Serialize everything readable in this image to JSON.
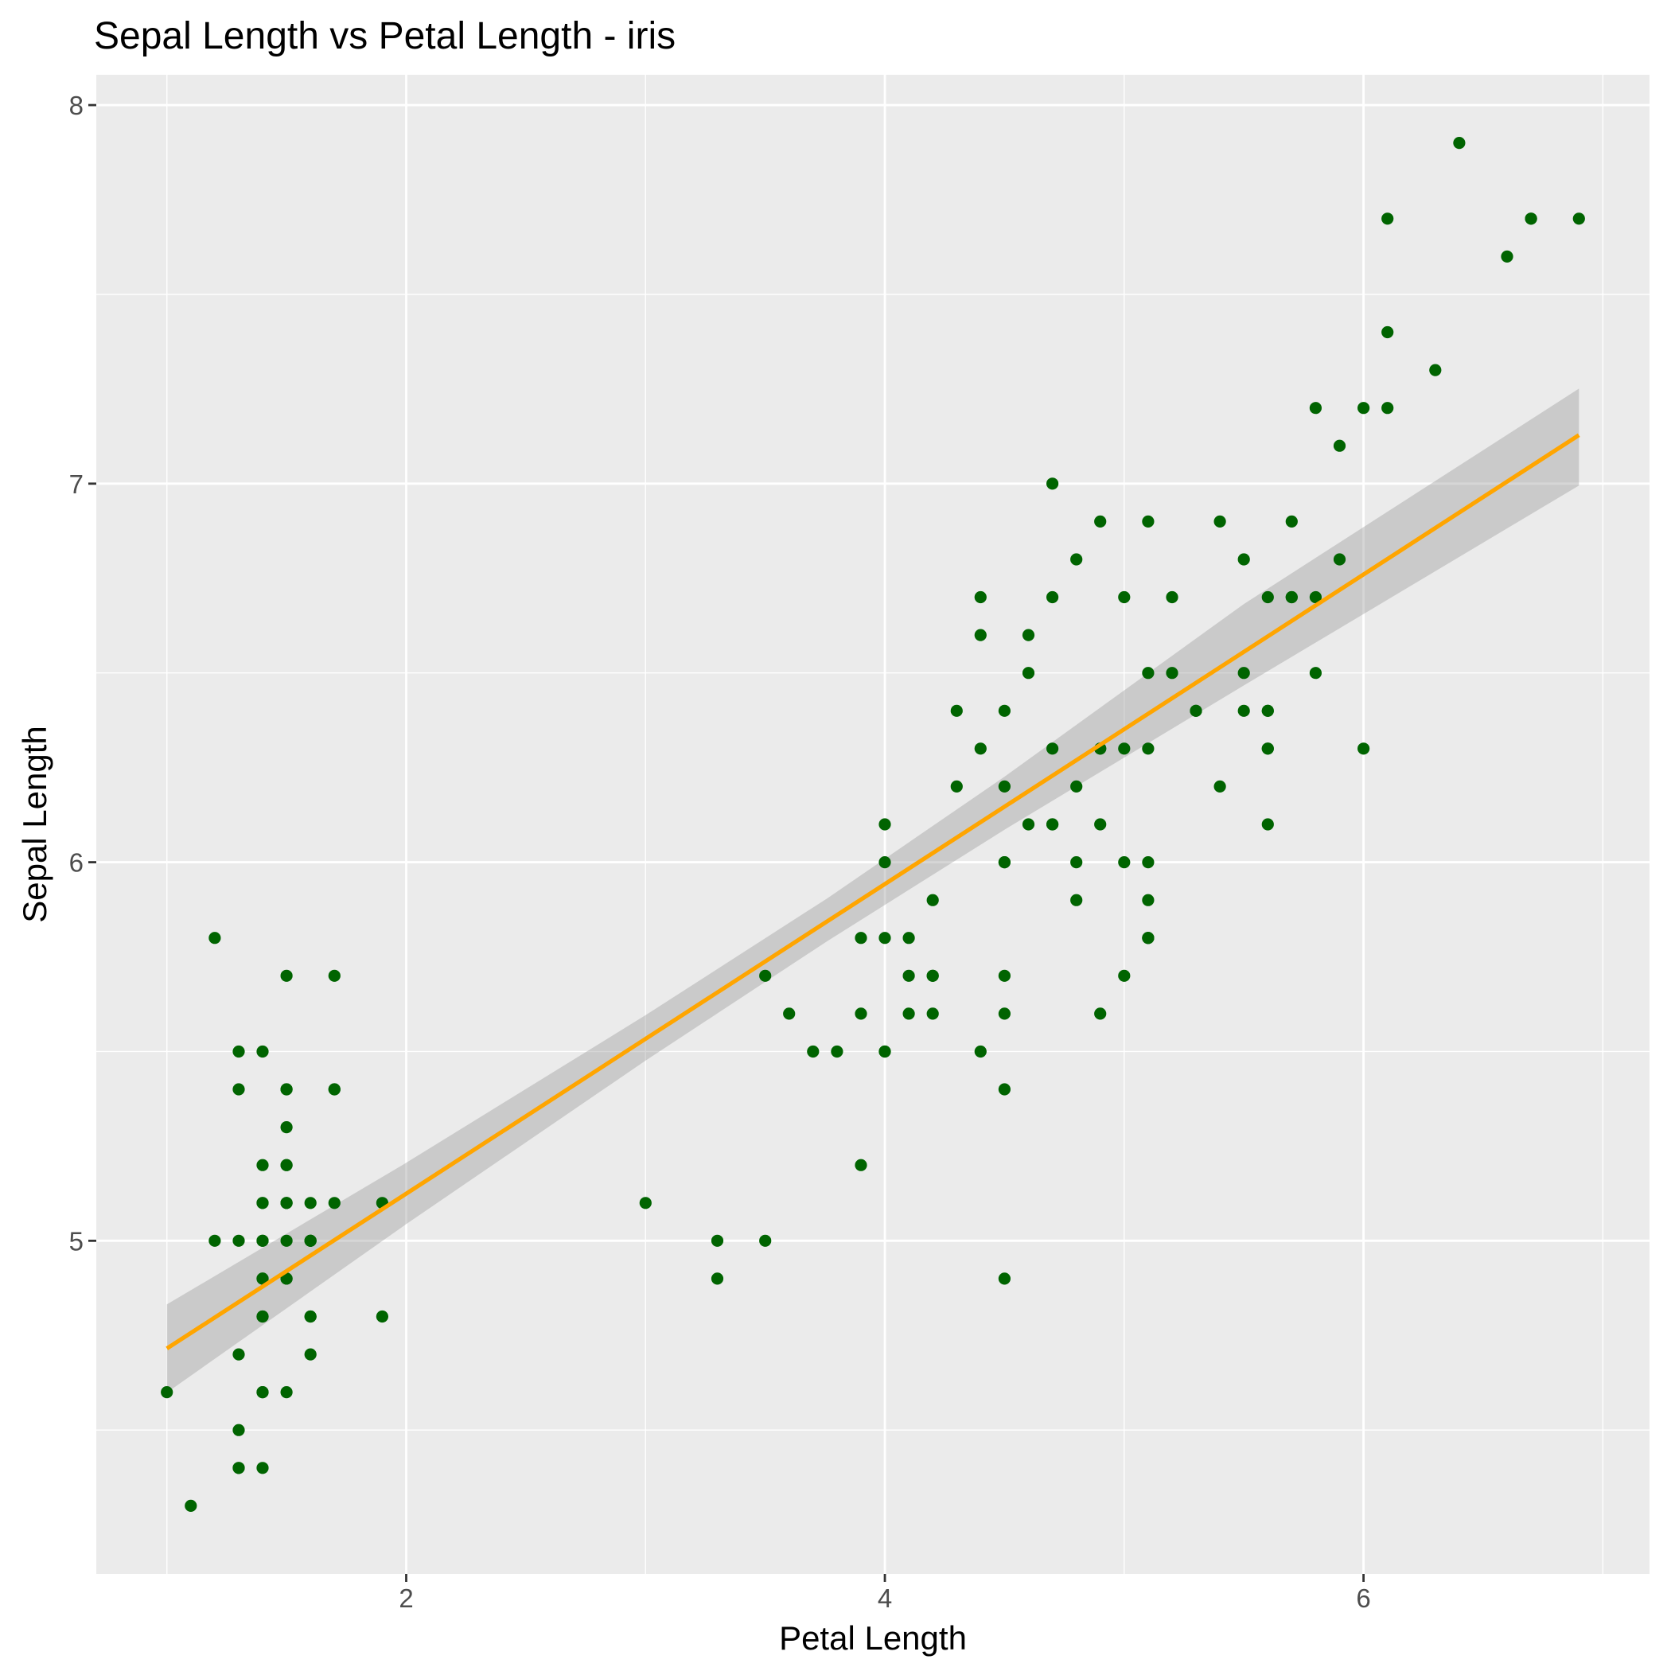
{
  "chart_data": {
    "type": "scatter",
    "title": "Sepal Length vs Petal Length - iris",
    "xlabel": "Petal Length",
    "ylabel": "Sepal Length",
    "xlim": [
      0.705,
      7.195
    ],
    "ylim": [
      4.12,
      8.08
    ],
    "x_ticks": [
      2,
      4,
      6
    ],
    "x_tick_labels": [
      "2",
      "4",
      "6"
    ],
    "y_ticks": [
      5,
      6,
      7,
      8
    ],
    "y_tick_labels": [
      "5",
      "6",
      "7",
      "8"
    ],
    "grid": true,
    "legend": "none",
    "colors": {
      "panel": "#ebebeb",
      "grid": "#ffffff",
      "points": "#006400",
      "fit_line": "#ffa500",
      "confidence_band": "#999999"
    },
    "series": [
      {
        "points": [
          [
            1.4,
            5.1
          ],
          [
            1.4,
            4.9
          ],
          [
            1.3,
            4.7
          ],
          [
            1.5,
            4.6
          ],
          [
            1.4,
            5.0
          ],
          [
            1.7,
            5.4
          ],
          [
            1.4,
            4.6
          ],
          [
            1.5,
            5.0
          ],
          [
            1.4,
            4.4
          ],
          [
            1.5,
            4.9
          ],
          [
            1.5,
            5.4
          ],
          [
            1.6,
            4.8
          ],
          [
            1.4,
            4.8
          ],
          [
            1.1,
            4.3
          ],
          [
            1.2,
            5.8
          ],
          [
            1.5,
            5.7
          ],
          [
            1.3,
            5.4
          ],
          [
            1.4,
            5.1
          ],
          [
            1.7,
            5.7
          ],
          [
            1.5,
            5.1
          ],
          [
            1.7,
            5.4
          ],
          [
            1.5,
            5.1
          ],
          [
            1.0,
            4.6
          ],
          [
            1.7,
            5.1
          ],
          [
            1.9,
            4.8
          ],
          [
            1.6,
            5.0
          ],
          [
            1.6,
            5.0
          ],
          [
            1.5,
            5.2
          ],
          [
            1.4,
            5.2
          ],
          [
            1.6,
            4.7
          ],
          [
            1.6,
            4.8
          ],
          [
            1.5,
            5.4
          ],
          [
            1.5,
            5.2
          ],
          [
            1.4,
            5.5
          ],
          [
            1.5,
            4.9
          ],
          [
            1.2,
            5.0
          ],
          [
            1.3,
            5.5
          ],
          [
            1.4,
            4.9
          ],
          [
            1.3,
            4.4
          ],
          [
            1.5,
            5.1
          ],
          [
            1.3,
            5.0
          ],
          [
            1.3,
            4.5
          ],
          [
            1.3,
            4.4
          ],
          [
            1.6,
            5.0
          ],
          [
            1.9,
            5.1
          ],
          [
            1.4,
            4.8
          ],
          [
            1.6,
            5.1
          ],
          [
            1.4,
            4.6
          ],
          [
            1.5,
            5.3
          ],
          [
            1.4,
            5.0
          ],
          [
            4.7,
            7.0
          ],
          [
            4.5,
            6.4
          ],
          [
            4.9,
            6.9
          ],
          [
            4.0,
            5.5
          ],
          [
            4.6,
            6.5
          ],
          [
            4.5,
            5.7
          ],
          [
            4.7,
            6.3
          ],
          [
            3.3,
            4.9
          ],
          [
            4.6,
            6.6
          ],
          [
            3.9,
            5.2
          ],
          [
            3.5,
            5.0
          ],
          [
            4.2,
            5.9
          ],
          [
            4.0,
            6.0
          ],
          [
            4.7,
            6.1
          ],
          [
            3.6,
            5.6
          ],
          [
            4.4,
            6.7
          ],
          [
            4.5,
            5.6
          ],
          [
            4.1,
            5.8
          ],
          [
            4.5,
            6.2
          ],
          [
            3.9,
            5.6
          ],
          [
            4.8,
            5.9
          ],
          [
            4.0,
            6.1
          ],
          [
            4.9,
            6.3
          ],
          [
            4.7,
            6.1
          ],
          [
            4.3,
            6.4
          ],
          [
            4.4,
            6.6
          ],
          [
            4.8,
            6.8
          ],
          [
            5.0,
            6.7
          ],
          [
            4.5,
            6.0
          ],
          [
            3.5,
            5.7
          ],
          [
            3.8,
            5.5
          ],
          [
            3.7,
            5.5
          ],
          [
            3.9,
            5.8
          ],
          [
            5.1,
            6.0
          ],
          [
            4.5,
            5.4
          ],
          [
            4.5,
            6.0
          ],
          [
            4.7,
            6.7
          ],
          [
            4.4,
            6.3
          ],
          [
            4.1,
            5.6
          ],
          [
            4.0,
            5.5
          ],
          [
            4.4,
            5.5
          ],
          [
            4.6,
            6.1
          ],
          [
            4.0,
            5.8
          ],
          [
            3.3,
            5.0
          ],
          [
            4.2,
            5.6
          ],
          [
            4.2,
            5.7
          ],
          [
            4.2,
            5.7
          ],
          [
            4.3,
            6.2
          ],
          [
            3.0,
            5.1
          ],
          [
            4.1,
            5.7
          ],
          [
            6.0,
            6.3
          ],
          [
            5.1,
            5.8
          ],
          [
            5.9,
            7.1
          ],
          [
            5.6,
            6.3
          ],
          [
            5.8,
            6.5
          ],
          [
            6.6,
            7.6
          ],
          [
            4.5,
            4.9
          ],
          [
            6.3,
            7.3
          ],
          [
            5.8,
            6.7
          ],
          [
            6.1,
            7.2
          ],
          [
            5.1,
            6.5
          ],
          [
            5.3,
            6.4
          ],
          [
            5.5,
            6.8
          ],
          [
            5.0,
            5.7
          ],
          [
            5.1,
            5.8
          ],
          [
            5.3,
            6.4
          ],
          [
            5.5,
            6.5
          ],
          [
            6.7,
            7.7
          ],
          [
            6.9,
            7.7
          ],
          [
            5.0,
            6.0
          ],
          [
            5.7,
            6.9
          ],
          [
            4.9,
            5.6
          ],
          [
            6.7,
            7.7
          ],
          [
            4.9,
            6.3
          ],
          [
            5.7,
            6.7
          ],
          [
            6.0,
            7.2
          ],
          [
            4.8,
            6.2
          ],
          [
            4.9,
            6.1
          ],
          [
            5.6,
            6.4
          ],
          [
            5.8,
            7.2
          ],
          [
            6.1,
            7.4
          ],
          [
            6.4,
            7.9
          ],
          [
            5.6,
            6.4
          ],
          [
            5.1,
            6.3
          ],
          [
            5.6,
            6.1
          ],
          [
            6.1,
            7.7
          ],
          [
            5.6,
            6.3
          ],
          [
            5.5,
            6.4
          ],
          [
            4.8,
            6.0
          ],
          [
            5.4,
            6.9
          ],
          [
            5.6,
            6.7
          ],
          [
            5.1,
            6.9
          ],
          [
            5.1,
            5.8
          ],
          [
            5.9,
            6.8
          ],
          [
            5.7,
            6.7
          ],
          [
            5.2,
            6.7
          ],
          [
            5.0,
            6.3
          ],
          [
            5.2,
            6.5
          ],
          [
            5.4,
            6.2
          ],
          [
            5.1,
            5.9
          ]
        ]
      }
    ],
    "fit": {
      "method": "lm",
      "intercept": 4.3066,
      "slope": 0.40892,
      "x_range": [
        1.0,
        6.9
      ],
      "confidence_band": [
        {
          "x": 1.0,
          "lower": 4.599,
          "upper": 4.832
        },
        {
          "x": 2.0,
          "lower": 5.044,
          "upper": 5.206
        },
        {
          "x": 3.0,
          "lower": 5.476,
          "upper": 5.596
        },
        {
          "x": 3.758,
          "lower": 5.791,
          "upper": 5.904
        },
        {
          "x": 4.5,
          "lower": 6.086,
          "upper": 6.226
        },
        {
          "x": 5.5,
          "lower": 6.467,
          "upper": 6.682
        },
        {
          "x": 6.9,
          "lower": 6.995,
          "upper": 7.251
        }
      ]
    }
  }
}
